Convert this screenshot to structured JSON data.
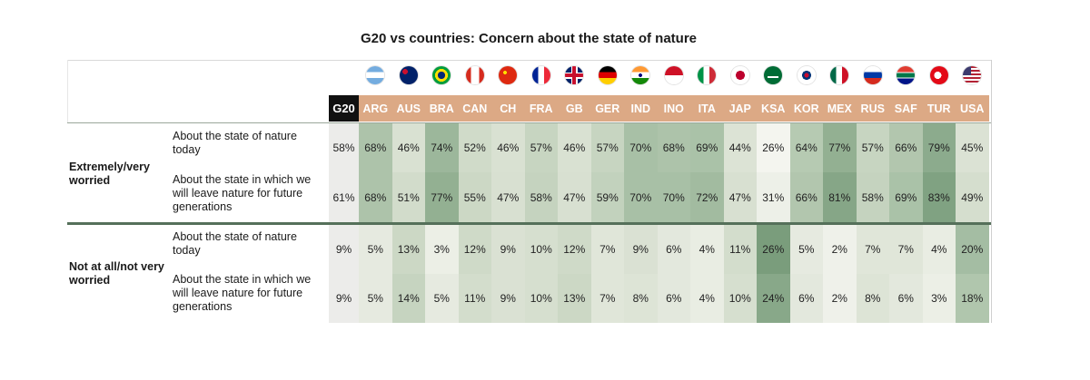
{
  "title": "G20 vs countries: Concern about the state of nature",
  "columns": [
    "G20",
    "ARG",
    "AUS",
    "BRA",
    "CAN",
    "CH",
    "FRA",
    "GB",
    "GER",
    "IND",
    "INO",
    "ITA",
    "JAP",
    "KSA",
    "KOR",
    "MEX",
    "RUS",
    "SAF",
    "TUR",
    "USA"
  ],
  "flag_icons": [
    "argentina-flag-icon",
    "australia-flag-icon",
    "brazil-flag-icon",
    "canada-flag-icon",
    "china-flag-icon",
    "france-flag-icon",
    "uk-flag-icon",
    "germany-flag-icon",
    "india-flag-icon",
    "indonesia-flag-icon",
    "italy-flag-icon",
    "japan-flag-icon",
    "saudi-arabia-flag-icon",
    "south-korea-flag-icon",
    "mexico-flag-icon",
    "russia-flag-icon",
    "south-africa-flag-icon",
    "turkey-flag-icon",
    "usa-flag-icon"
  ],
  "groups": [
    {
      "label": "Extremely/very worried"
    },
    {
      "label": "Not at all/not very worried"
    }
  ],
  "row_labels": [
    "About the state of nature today",
    "About the state in which we will leave nature for future generations",
    "About the state of nature today",
    "About the state in which we will leave nature for future generations"
  ],
  "cells": [
    [
      "58%",
      "68%",
      "46%",
      "74%",
      "52%",
      "46%",
      "57%",
      "46%",
      "57%",
      "70%",
      "68%",
      "69%",
      "44%",
      "26%",
      "64%",
      "77%",
      "57%",
      "66%",
      "79%",
      "45%"
    ],
    [
      "61%",
      "68%",
      "51%",
      "77%",
      "55%",
      "47%",
      "58%",
      "47%",
      "59%",
      "70%",
      "70%",
      "72%",
      "47%",
      "31%",
      "66%",
      "81%",
      "58%",
      "69%",
      "83%",
      "49%"
    ],
    [
      "9%",
      "5%",
      "13%",
      "3%",
      "12%",
      "9%",
      "10%",
      "12%",
      "7%",
      "9%",
      "6%",
      "4%",
      "11%",
      "26%",
      "5%",
      "2%",
      "7%",
      "7%",
      "4%",
      "20%"
    ],
    [
      "9%",
      "5%",
      "14%",
      "5%",
      "11%",
      "9%",
      "10%",
      "13%",
      "7%",
      "8%",
      "6%",
      "4%",
      "10%",
      "24%",
      "6%",
      "2%",
      "8%",
      "6%",
      "3%",
      "18%"
    ]
  ],
  "chart_data": {
    "type": "table",
    "title": "G20 vs countries: Concern about the state of nature",
    "categories": [
      "G20",
      "ARG",
      "AUS",
      "BRA",
      "CAN",
      "CH",
      "FRA",
      "GB",
      "GER",
      "IND",
      "INO",
      "ITA",
      "JAP",
      "KSA",
      "KOR",
      "MEX",
      "RUS",
      "SAF",
      "TUR",
      "USA"
    ],
    "series": [
      {
        "name": "Extremely/very worried - About the state of nature today",
        "values": [
          58,
          68,
          46,
          74,
          52,
          46,
          57,
          46,
          57,
          70,
          68,
          69,
          44,
          26,
          64,
          77,
          57,
          66,
          79,
          45
        ]
      },
      {
        "name": "Extremely/very worried - About the state in which we will leave nature for future generations",
        "values": [
          61,
          68,
          51,
          77,
          55,
          47,
          58,
          47,
          59,
          70,
          70,
          72,
          47,
          31,
          66,
          81,
          58,
          69,
          83,
          49
        ]
      },
      {
        "name": "Not at all/not very worried - About the state of nature today",
        "values": [
          9,
          5,
          13,
          3,
          12,
          9,
          10,
          12,
          7,
          9,
          6,
          4,
          11,
          26,
          5,
          2,
          7,
          7,
          4,
          20
        ]
      },
      {
        "name": "Not at all/not very worried - About the state in which we will leave nature for future generations",
        "values": [
          9,
          5,
          14,
          5,
          11,
          9,
          10,
          13,
          7,
          8,
          6,
          4,
          10,
          24,
          6,
          2,
          8,
          6,
          3,
          18
        ]
      }
    ],
    "unit": "%"
  }
}
